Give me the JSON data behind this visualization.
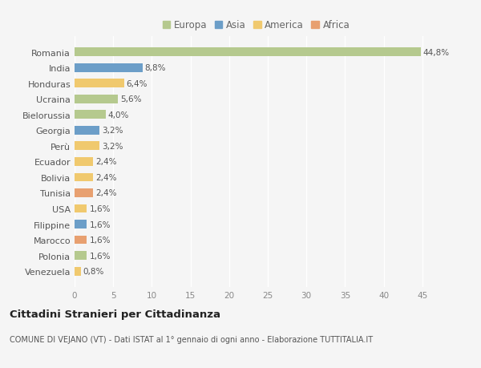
{
  "countries": [
    "Romania",
    "India",
    "Honduras",
    "Ucraina",
    "Bielorussia",
    "Georgia",
    "Perù",
    "Ecuador",
    "Bolivia",
    "Tunisia",
    "USA",
    "Filippine",
    "Marocco",
    "Polonia",
    "Venezuela"
  ],
  "values": [
    44.8,
    8.8,
    6.4,
    5.6,
    4.0,
    3.2,
    3.2,
    2.4,
    2.4,
    2.4,
    1.6,
    1.6,
    1.6,
    1.6,
    0.8
  ],
  "labels": [
    "44,8%",
    "8,8%",
    "6,4%",
    "5,6%",
    "4,0%",
    "3,2%",
    "3,2%",
    "2,4%",
    "2,4%",
    "2,4%",
    "1,6%",
    "1,6%",
    "1,6%",
    "1,6%",
    "0,8%"
  ],
  "continents": [
    "Europa",
    "Asia",
    "America",
    "Europa",
    "Europa",
    "Asia",
    "America",
    "America",
    "America",
    "Africa",
    "America",
    "Asia",
    "Africa",
    "Europa",
    "America"
  ],
  "colors": {
    "Europa": "#b5c98e",
    "Asia": "#6c9ec8",
    "America": "#f0c96e",
    "Africa": "#e8a070"
  },
  "legend_order": [
    "Europa",
    "Asia",
    "America",
    "Africa"
  ],
  "title": "Cittadini Stranieri per Cittadinanza",
  "subtitle": "COMUNE DI VEJANO (VT) - Dati ISTAT al 1° gennaio di ogni anno - Elaborazione TUTTITALIA.IT",
  "xlim": [
    0,
    47
  ],
  "xticks": [
    0,
    5,
    10,
    15,
    20,
    25,
    30,
    35,
    40,
    45
  ],
  "bg_color": "#f5f5f5",
  "grid_color": "#ffffff",
  "bar_height": 0.55
}
